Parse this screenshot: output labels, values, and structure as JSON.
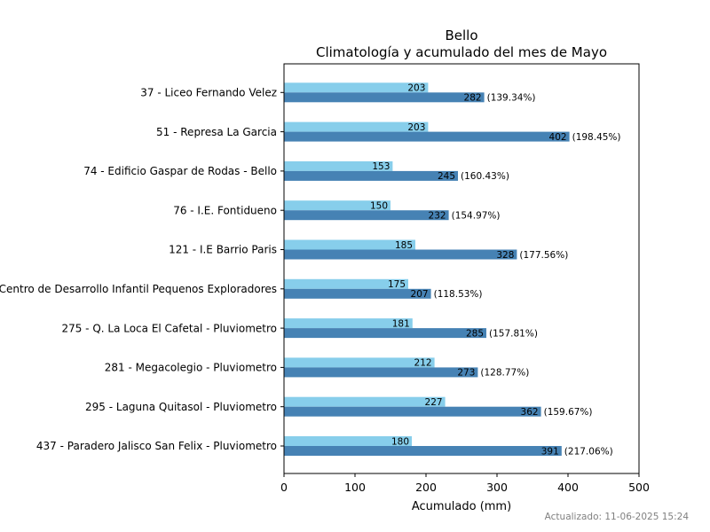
{
  "chart_data": {
    "type": "bar",
    "orientation": "horizontal",
    "title": "Bello",
    "subtitle": "Climatología y acumulado del mes de Mayo",
    "xlabel": "Acumulado (mm)",
    "ylabel": "",
    "xlim": [
      0,
      500
    ],
    "xticks": [
      0,
      100,
      200,
      300,
      400,
      500
    ],
    "grid": false,
    "categories": [
      "37 - Liceo Fernando Velez",
      "51 - Represa La Garcia ",
      "74 - Edificio Gaspar de Rodas - Bello",
      "76 - I.E. Fontidueno",
      "121 - I.E Barrio Paris",
      "Centro de Desarrollo Infantil Pequenos Exploradores",
      "275 - Q. La Loca El Cafetal - Pluviometro",
      "281 - Megacolegio - Pluviometro",
      "295 - Laguna Quitasol - Pluviometro",
      "437 - Paradero Jalisco San Felix - Pluviometro"
    ],
    "series": [
      {
        "color": "#87CEEB",
        "values": [
          203,
          203,
          153,
          150,
          185,
          175,
          181,
          212,
          227,
          180
        ],
        "labels": [
          "203",
          "203",
          "153",
          "150",
          "185",
          "175",
          "181",
          "212",
          "227",
          "180"
        ]
      },
      {
        "color": "#4682B4",
        "values": [
          282,
          402,
          245,
          232,
          328,
          207,
          285,
          273,
          362,
          391
        ],
        "labels": [
          "282",
          "402",
          "245",
          "232",
          "328",
          "207",
          "285",
          "273",
          "362",
          "391"
        ],
        "percent_labels": [
          "(139.34%)",
          "(198.45%)",
          "(160.43%)",
          "(154.97%)",
          "(177.56%)",
          "(118.53%)",
          "(157.81%)",
          "(128.77%)",
          "(159.67%)",
          "(217.06%)"
        ]
      }
    ]
  },
  "footer": "Actualizado: 11-06-2025 15:24"
}
